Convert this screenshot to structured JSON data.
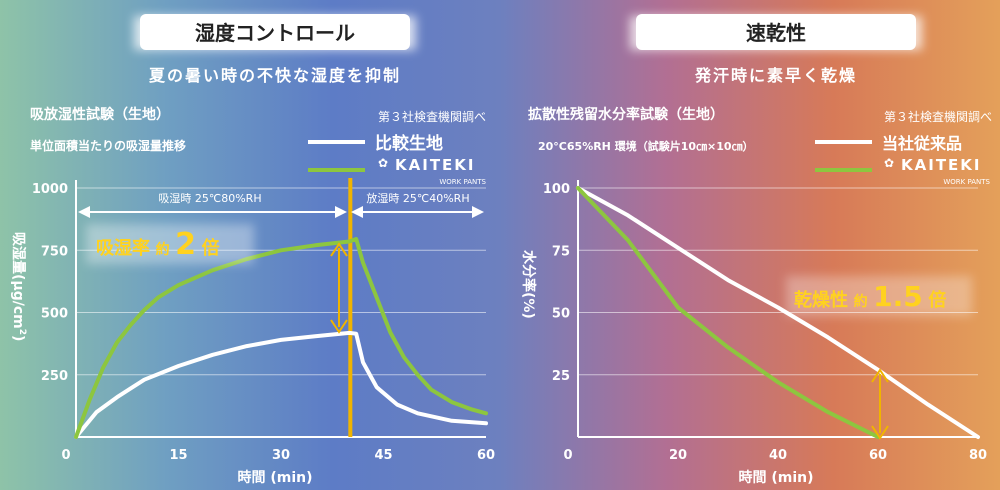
{
  "colors": {
    "bg_stops": [
      "#8ec3a8",
      "#6f9fc2",
      "#5d7cc6",
      "#6d80bf",
      "#b26f93",
      "#d77a58",
      "#e4a05a"
    ],
    "kaiteki_line": "#8dc63f",
    "white_line": "#ffffff",
    "accent": "#f0b400",
    "accent_text": "#ffd21f",
    "text": "#ffffff"
  },
  "left": {
    "header": "湿度コントロール",
    "subtitle": "夏の暑い時の不快な湿度を抑制",
    "test_title": "吸放湿性試験（生地）",
    "test_sub": "単位面積当たりの吸湿量推移",
    "source": "第３社検査機関調べ",
    "legend_compare": "比較生地",
    "brand": "KAITEKI",
    "brand_sub": "WORK PANTS",
    "phase_absorb": "吸湿時 25℃80%RH",
    "phase_release": "放湿時 25℃40%RH",
    "callout_prefix": "吸湿率",
    "callout_approx": "約",
    "callout_value": "2",
    "callout_unit": "倍",
    "ylabel_main": "吸湿量(μg/cm",
    "ylabel_sup": "2",
    "ylabel_close": ")"
  },
  "right": {
    "header": "速乾性",
    "subtitle": "発汗時に素早く乾燥",
    "test_title": "拡散性残留水分率試験（生地）",
    "test_sub": "20°C65%RH 環境（試験片10㎝×10㎝）",
    "source": "第３社検査機関調べ",
    "legend_compare": "当社従来品",
    "brand": "KAITEKI",
    "brand_sub": "WORK PANTS",
    "callout_prefix": "乾燥性",
    "callout_approx": "約",
    "callout_value": "1.5",
    "callout_unit": "倍",
    "ylabel": "水分率(%)"
  },
  "chart_data": [
    {
      "type": "line",
      "xlabel": "時間 (min)",
      "ylabel": "吸湿量(μg/cm2)",
      "xlim": [
        0,
        60
      ],
      "ylim": [
        0,
        1000
      ],
      "xticks": [
        0,
        15,
        30,
        45,
        60
      ],
      "yticks": [
        250,
        500,
        750,
        1000
      ],
      "grid": true,
      "marker_x": 40,
      "series": [
        {
          "name": "KAITEKI WORK PANTS",
          "color": "#8dc63f",
          "points": [
            [
              0,
              0
            ],
            [
              2,
              150
            ],
            [
              4,
              280
            ],
            [
              6,
              380
            ],
            [
              8,
              450
            ],
            [
              10,
              510
            ],
            [
              12,
              560
            ],
            [
              15,
              610
            ],
            [
              20,
              670
            ],
            [
              25,
              715
            ],
            [
              30,
              750
            ],
            [
              35,
              770
            ],
            [
              40,
              785
            ],
            [
              41,
              795
            ],
            [
              42,
              700
            ],
            [
              44,
              560
            ],
            [
              46,
              420
            ],
            [
              48,
              320
            ],
            [
              50,
              250
            ],
            [
              52,
              190
            ],
            [
              55,
              140
            ],
            [
              58,
              110
            ],
            [
              60,
              95
            ]
          ]
        },
        {
          "name": "比較生地",
          "color": "#ffffff",
          "points": [
            [
              0,
              0
            ],
            [
              3,
              100
            ],
            [
              6,
              160
            ],
            [
              10,
              230
            ],
            [
              15,
              285
            ],
            [
              20,
              330
            ],
            [
              25,
              365
            ],
            [
              30,
              390
            ],
            [
              35,
              405
            ],
            [
              40,
              418
            ],
            [
              41,
              415
            ],
            [
              42,
              300
            ],
            [
              44,
              200
            ],
            [
              47,
              130
            ],
            [
              50,
              95
            ],
            [
              55,
              65
            ],
            [
              60,
              55
            ]
          ]
        }
      ]
    },
    {
      "type": "line",
      "xlabel": "時間 (min)",
      "ylabel": "水分率(%)",
      "xlim": [
        0,
        80
      ],
      "ylim": [
        0,
        100
      ],
      "xticks": [
        0,
        20,
        40,
        60,
        80
      ],
      "yticks": [
        25,
        50,
        75,
        100
      ],
      "grid": true,
      "series": [
        {
          "name": "KAITEKI WORK PANTS",
          "color": "#8dc63f",
          "points": [
            [
              0,
              100
            ],
            [
              10,
              79
            ],
            [
              20,
              52
            ],
            [
              30,
              36
            ],
            [
              40,
              22
            ],
            [
              50,
              10
            ],
            [
              60,
              0
            ]
          ]
        },
        {
          "name": "当社従来品",
          "color": "#ffffff",
          "points": [
            [
              0,
              100
            ],
            [
              10,
              89
            ],
            [
              20,
              76
            ],
            [
              30,
              63
            ],
            [
              40,
              52
            ],
            [
              50,
              40
            ],
            [
              60,
              27
            ],
            [
              70,
              13
            ],
            [
              80,
              0
            ]
          ]
        }
      ]
    }
  ]
}
